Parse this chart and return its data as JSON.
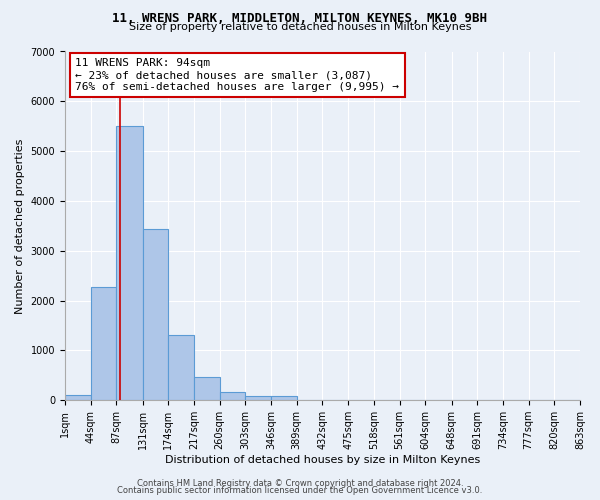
{
  "title1": "11, WRENS PARK, MIDDLETON, MILTON KEYNES, MK10 9BH",
  "title2": "Size of property relative to detached houses in Milton Keynes",
  "xlabel": "Distribution of detached houses by size in Milton Keynes",
  "ylabel": "Number of detached properties",
  "bar_values": [
    100,
    2270,
    5500,
    3440,
    1300,
    460,
    160,
    90,
    80,
    0,
    0,
    0,
    0,
    0,
    0,
    0,
    0,
    0,
    0,
    0
  ],
  "bin_edges": [
    1,
    44,
    87,
    131,
    174,
    217,
    260,
    303,
    346,
    389,
    432,
    475,
    518,
    561,
    604,
    648,
    691,
    734,
    777,
    820,
    863
  ],
  "x_tick_labels": [
    "1sqm",
    "44sqm",
    "87sqm",
    "131sqm",
    "174sqm",
    "217sqm",
    "260sqm",
    "303sqm",
    "346sqm",
    "389sqm",
    "432sqm",
    "475sqm",
    "518sqm",
    "561sqm",
    "604sqm",
    "648sqm",
    "691sqm",
    "734sqm",
    "777sqm",
    "820sqm",
    "863sqm"
  ],
  "bar_color": "#aec6e8",
  "bar_edge_color": "#5b9bd5",
  "bg_color": "#eaf0f8",
  "grid_color": "#ffffff",
  "vline_x": 94,
  "vline_color": "#cc0000",
  "annotation_line1": "11 WRENS PARK: 94sqm",
  "annotation_line2": "← 23% of detached houses are smaller (3,087)",
  "annotation_line3": "76% of semi-detached houses are larger (9,995) →",
  "annotation_box_color": "#ffffff",
  "annotation_box_edge": "#cc0000",
  "ylim": [
    0,
    7000
  ],
  "yticks": [
    0,
    1000,
    2000,
    3000,
    4000,
    5000,
    6000,
    7000
  ],
  "footer1": "Contains HM Land Registry data © Crown copyright and database right 2024.",
  "footer2": "Contains public sector information licensed under the Open Government Licence v3.0.",
  "title1_fontsize": 9,
  "title2_fontsize": 8,
  "annotation_fontsize": 8,
  "ylabel_fontsize": 8,
  "xlabel_fontsize": 8,
  "tick_fontsize": 7,
  "footer_fontsize": 6
}
